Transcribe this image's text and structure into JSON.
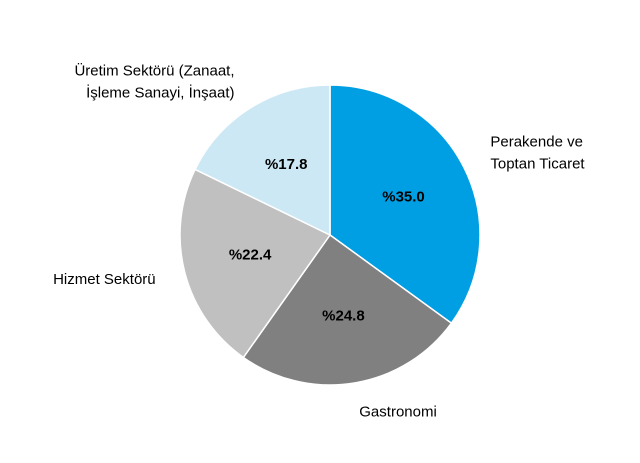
{
  "chart_data": {
    "type": "pie",
    "categories": [
      "Perakende ve\nToptan Ticaret",
      "Gastronomi",
      "Hizmet Sektörü",
      "Üretim Sektörü (Zanaat,\nİşleme Sanayi, İnşaat)"
    ],
    "values": [
      35.0,
      24.8,
      22.4,
      17.8
    ],
    "value_labels": [
      "%35.0",
      "%24.8",
      "%22.4",
      "%17.8"
    ],
    "colors": [
      "#009fe3",
      "#808080",
      "#c0c0c0",
      "#cde8f5"
    ]
  }
}
